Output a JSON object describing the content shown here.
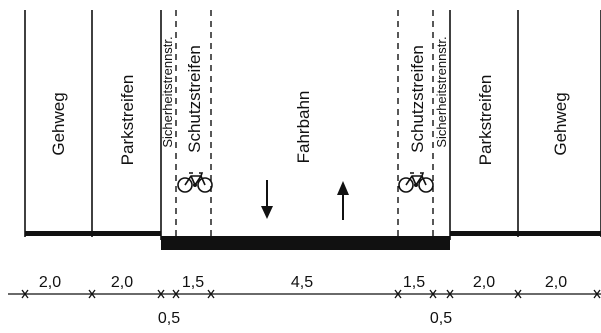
{
  "diagram": {
    "zones": {
      "gehweg_left": "Gehweg",
      "parkstreifen_left": "Parkstreifen",
      "sicherheit_left": "Sicherheitstrennstr.",
      "schutz_left": "Schutzstreifen",
      "fahrbahn": "Fahrbahn",
      "schutz_right": "Schutzstreifen",
      "sicherheit_right": "Sicherheitstrennstr.",
      "parkstreifen_right": "Parkstreifen",
      "gehweg_right": "Gehweg"
    },
    "dimensions": {
      "top": [
        "2,0",
        "2,0",
        "1,5",
        "4,5",
        "1,5",
        "2,0",
        "2,0"
      ],
      "bottom": [
        "0,5",
        "0,5"
      ]
    },
    "icons": [
      "bicycle-icon",
      "arrow-down-icon",
      "arrow-up-icon"
    ]
  }
}
